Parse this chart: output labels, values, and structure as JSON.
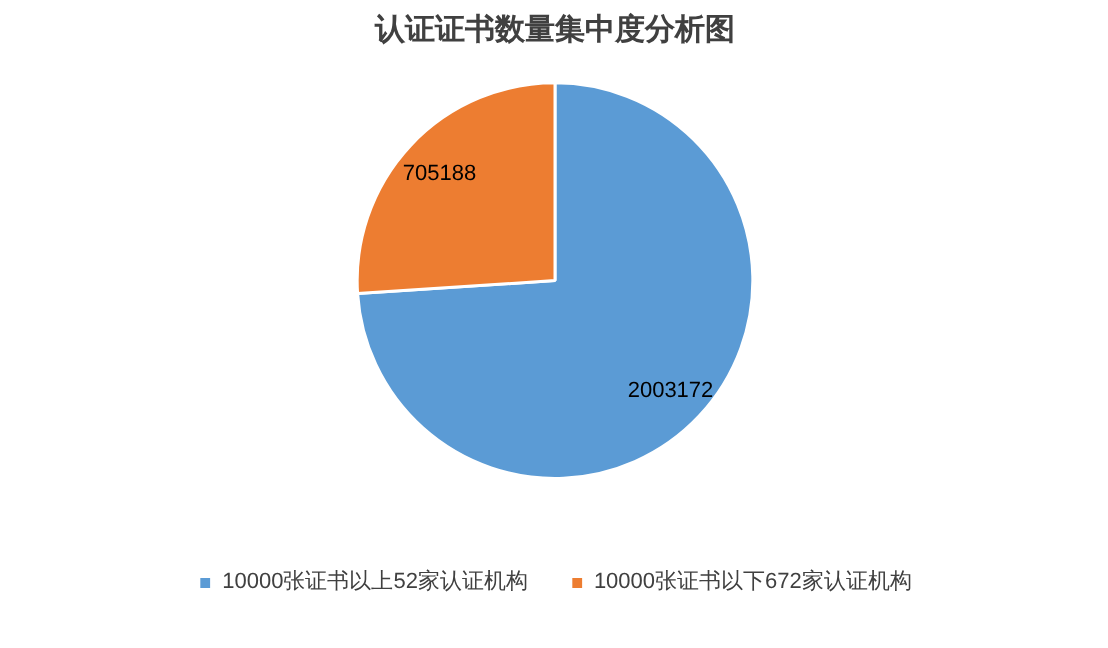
{
  "chart_data": {
    "type": "pie",
    "title": "认证证书数量集中度分析图",
    "categories": [
      "10000张证书以上52家认证机构",
      "10000张证书以下672家认证机构"
    ],
    "values": [
      2003172,
      705188
    ],
    "colors": [
      "#5b9bd5",
      "#ed7d31"
    ],
    "data_labels": true,
    "legend": "bottom"
  }
}
